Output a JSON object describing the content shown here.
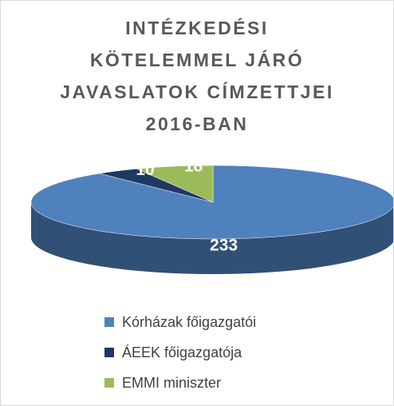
{
  "chart_data": {
    "type": "pie3d",
    "title": "INTÉZKEDÉSI KÖTELEMMEL JÁRÓ JAVASLATOK CÍMZETTJEI 2016-BAN",
    "categories": [
      "Kórházak főigazgatói",
      "ÁEEK főigazgatója",
      "EMMI miniszter"
    ],
    "values": [
      233,
      10,
      18
    ],
    "colors": [
      "#4f81bd",
      "#1f3864",
      "#9bbb59"
    ],
    "legend": "bottom"
  }
}
